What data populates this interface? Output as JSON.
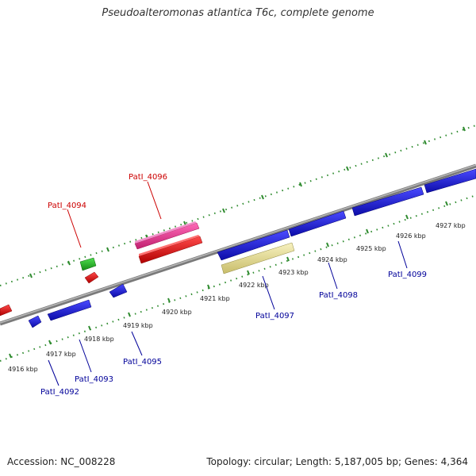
{
  "title": "Pseudoalteromonas atlantica T6c, complete genome",
  "footer": {
    "accession": "Accession: NC_008228",
    "summary": "Topology: circular; Length: 5,187,005 bp; Genes: 4,364"
  },
  "colors": {
    "backbone": "#8a8a8a",
    "tick": "#2e8b2e",
    "gene_blue": "#1f1fe0",
    "gene_red": "#e81010",
    "gene_pink": "#e8409a",
    "gene_green": "#30c030",
    "gene_yellow": "#f0e8a0",
    "label_red": "#cc0000",
    "label_blue": "#000099"
  },
  "kbp_labels": [
    "4916 kbp",
    "4917 kbp",
    "4918 kbp",
    "4919 kbp",
    "4920 kbp",
    "4921 kbp",
    "4922 kbp",
    "4923 kbp",
    "4924 kbp",
    "4925 kbp",
    "4926 kbp",
    "4927 kbp"
  ],
  "gene_labels": [
    {
      "text": "PatI_4096",
      "color": "red"
    },
    {
      "text": "PatI_4094",
      "color": "red"
    },
    {
      "text": "PatI_4097",
      "color": "blue"
    },
    {
      "text": "PatI_4098",
      "color": "blue"
    },
    {
      "text": "PatI_4099",
      "color": "blue"
    },
    {
      "text": "PatI_4095",
      "color": "blue"
    },
    {
      "text": "PatI_4093",
      "color": "blue"
    },
    {
      "text": "PatI_4092",
      "color": "blue"
    }
  ]
}
